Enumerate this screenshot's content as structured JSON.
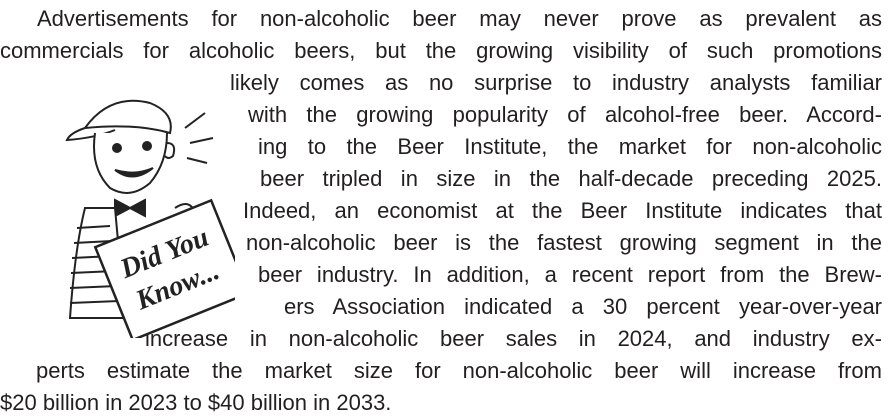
{
  "article": {
    "lines": [
      "Advertisements for non-alcoholic beer may never prove as prevalent as",
      "commercials for alcoholic beers, but the growing visibility of such promotions",
      "likely comes as no surprise to industry analysts familiar",
      "with the growing popularity of alcohol-free beer. Accord-",
      "ing to the Beer Institute, the market for non-alcoholic",
      "beer tripled in size in the half-decade preceding 2025.",
      "Indeed, an economist at the Beer Institute indicates that",
      "non-alcoholic beer is the fastest growing segment in the",
      "beer industry. In addition, a recent report from the Brew-",
      "ers Association indicated a 30 percent year-over-year",
      "increase in non-alcoholic beer sales in 2024, and industry ex-",
      "perts estimate the market size for non-alcoholic beer will increase from",
      "$20 billion in 2023 to $40 billion in 2033."
    ],
    "illustration": {
      "sign_line_1": "Did You",
      "sign_line_2": "Know..."
    }
  }
}
